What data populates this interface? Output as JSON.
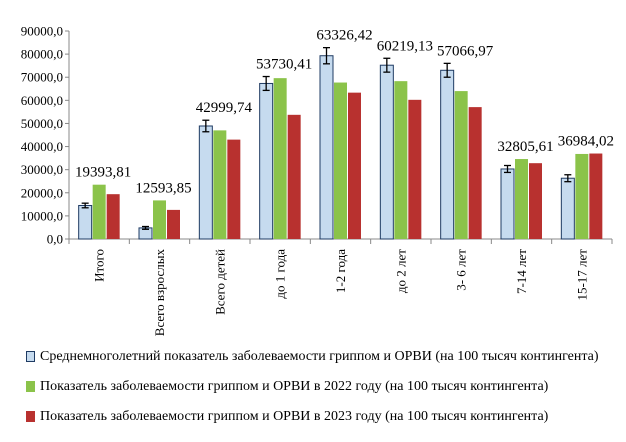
{
  "chart_data": {
    "type": "bar",
    "categories": [
      "Итого",
      "Всего взрослых",
      "Всего детей",
      "до 1 года",
      "1-2 года",
      "до 2 лет",
      "3- 6 лет",
      "7-14 лет",
      "15-17 лет"
    ],
    "series": [
      {
        "name": "Среднемноголетний показатель заболеваемости гриппом и ОРВИ (на 100 тысяч контингента)",
        "values": [
          14500,
          4800,
          48900,
          67300,
          79300,
          75200,
          73000,
          30300,
          26300
        ],
        "error": [
          1000,
          600,
          2500,
          3000,
          3500,
          3000,
          3000,
          1500,
          1500
        ],
        "color": "#c6dbef",
        "stroke": "#1f3b63"
      },
      {
        "name": "Показатель заболеваемости гриппом и ОРВИ в 2022 году  (на 100 тысяч контингента)",
        "values": [
          23500,
          16700,
          47000,
          69600,
          67700,
          68300,
          64000,
          34600,
          36800
        ],
        "color": "#8bc34a"
      },
      {
        "name": "Показатель заболеваемости гриппом и ОРВИ в 2023 году  (на 100 тысяч контингента)",
        "values": [
          19393.81,
          12593.85,
          42999.74,
          53730.41,
          63326.42,
          60219.13,
          57066.97,
          32805.61,
          36984.02
        ],
        "color": "#b8312f"
      }
    ],
    "data_labels": [
      "19393,81",
      "12593,85",
      "42999,74",
      "53730,41",
      "63326,42",
      "60219,13",
      "57066,97",
      "32805,61",
      "36984,02"
    ],
    "y_ticks": [
      "0,0",
      "10000,0",
      "20000,0",
      "30000,0",
      "40000,0",
      "50000,0",
      "60000,0",
      "70000,0",
      "80000,0",
      "90000,0"
    ],
    "ylim": [
      0,
      90000
    ],
    "grid": false,
    "legend_position": "bottom"
  }
}
